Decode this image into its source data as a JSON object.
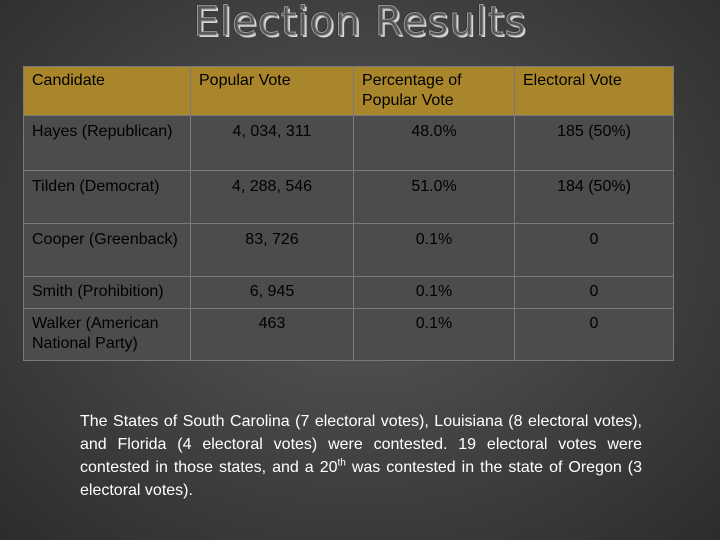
{
  "title": "Election Results",
  "table": {
    "headers": [
      "Candidate",
      "Popular Vote",
      "Percentage of Popular Vote",
      "Electoral Vote"
    ],
    "rows": [
      {
        "candidate": "Hayes (Republican)",
        "popular": "4, 034, 311",
        "pct": "48.0%",
        "electoral": "185 (50%)"
      },
      {
        "candidate": "Tilden (Democrat)",
        "popular": "4, 288, 546",
        "pct": "51.0%",
        "electoral": "184 (50%)"
      },
      {
        "candidate": "Cooper (Greenback)",
        "popular": "83, 726",
        "pct": "0.1%",
        "electoral": "0"
      },
      {
        "candidate": "Smith (Prohibition)",
        "popular": "6, 945",
        "pct": "0.1%",
        "electoral": "0"
      },
      {
        "candidate": "Walker (American National Party)",
        "popular": "463",
        "pct": "0.1%",
        "electoral": "0"
      }
    ]
  },
  "note": {
    "part1": "The States of South Carolina (7 electoral votes), Louisiana (8 electoral votes), and Florida (4 electoral votes) were contested. 19 electoral votes were contested in those states, and a 20",
    "sup": "th",
    "part2": " was contested in the state of Oregon (3 electoral votes)."
  },
  "colors": {
    "header_gold": "#a9862b",
    "background": "#454545",
    "cell_background": "#4c4c4c"
  }
}
